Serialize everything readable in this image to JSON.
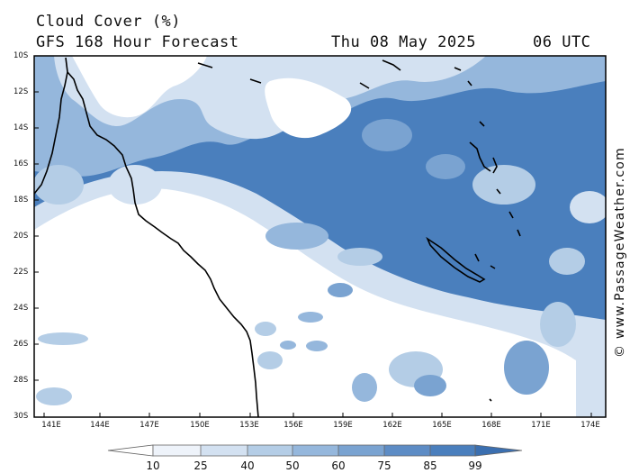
{
  "header": {
    "title": "Cloud Cover (%)",
    "subtitle": "GFS 168 Hour Forecast",
    "date": "Thu 08 May 2025",
    "time": "06 UTC"
  },
  "map": {
    "lat_labels": [
      "10S",
      "12S",
      "14S",
      "16S",
      "18S",
      "20S",
      "22S",
      "24S",
      "26S",
      "28S",
      "30S"
    ],
    "lon_labels": [
      "141E",
      "144E",
      "147E",
      "150E",
      "153E",
      "156E",
      "159E",
      "162E",
      "165E",
      "168E",
      "171E",
      "174E"
    ],
    "copyright": "© www.PassageWeather.com"
  },
  "colorbar": {
    "labels": [
      "10",
      "25",
      "40",
      "50",
      "60",
      "75",
      "85",
      "99"
    ],
    "colors": [
      "#ffffff",
      "#eef3fa",
      "#d3e1f1",
      "#b4cde6",
      "#95b7dc",
      "#7aa3d1",
      "#5d8cc5",
      "#4a7fbd",
      "#3b6fb0"
    ]
  }
}
